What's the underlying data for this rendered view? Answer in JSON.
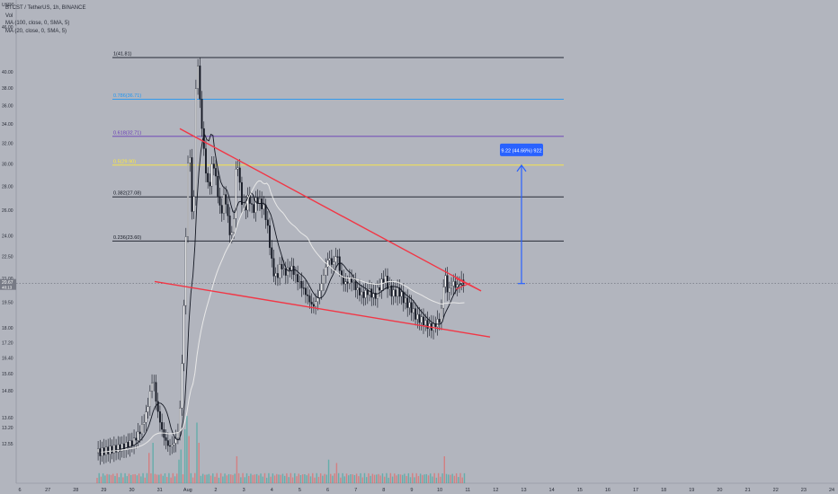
{
  "chart_data": {
    "type": "candlestick",
    "symbol_title": "BTCST / TetherUS, 1h, BINANCE",
    "indicators": [
      "Vol",
      "MA (100, close, 0, SMA, 5)",
      "MA (20, close, 0, SMA, 5)"
    ],
    "indicator_first": "MA (100, close, 0, SMA, 5)",
    "currency_label": "USDT",
    "y_scale": "log",
    "ylim": [
      11.6,
      46
    ],
    "y_ticks": [
      46.0,
      40.0,
      38.0,
      36.0,
      34.0,
      32.0,
      30.0,
      28.0,
      26.0,
      24.0,
      22.5,
      21.0,
      19.5,
      18.0,
      17.2,
      16.4,
      15.6,
      14.8,
      13.6,
      13.2,
      12.55
    ],
    "y_tick_labels": [
      "46.00",
      "40.00",
      "38.00",
      "36.00",
      "34.00",
      "32.00",
      "30.00",
      "28.00",
      "26.00",
      "24.00",
      "22.50",
      "21.00",
      "19.50",
      "18.00",
      "17.20",
      "16.40",
      "15.60",
      "14.80",
      "13.60",
      "13.20",
      "12.55"
    ],
    "current_price": "20.67",
    "current_price_sub": "48:13",
    "x_ticks": [
      "6",
      "27",
      "28",
      "29",
      "30",
      "31",
      "Aug",
      "2",
      "3",
      "4",
      "5",
      "6",
      "7",
      "8",
      "9",
      "10",
      "11",
      "12",
      "13",
      "14",
      "15",
      "16",
      "17",
      "18",
      "19",
      "20",
      "21",
      "22",
      "23",
      "24"
    ],
    "fib_levels": [
      {
        "ratio": 1,
        "price": 41.81,
        "label": "1(41.81)",
        "color": "#131722"
      },
      {
        "ratio": 0.786,
        "price": 36.71,
        "label": "0.786(36.71)",
        "color": "#2196f3"
      },
      {
        "ratio": 0.618,
        "price": 32.71,
        "label": "0.618(32.71)",
        "color": "#673ab7"
      },
      {
        "ratio": 0.5,
        "price": 29.9,
        "label": "0.5(29.90)",
        "color": "#ffeb3b"
      },
      {
        "ratio": 0.382,
        "price": 27.08,
        "label": "0.382(27.08)",
        "color": "#131722"
      },
      {
        "ratio": 0.236,
        "price": 23.6,
        "label": "0.236(23.60)",
        "color": "#131722"
      }
    ],
    "measure": {
      "label": "9.22 (44.66%) 922",
      "from_price": 20.67,
      "to_price": 29.9
    },
    "colors": {
      "up": "#ffffff",
      "down": "#131722",
      "trendline": "#f23645",
      "ma20": "#131722",
      "ma100": "#e8e8e8",
      "measure": "#2962ff"
    },
    "series_points": [
      {
        "t": 0,
        "p": 12.2
      },
      {
        "t": 6,
        "p": 12.3
      },
      {
        "t": 12,
        "p": 12.4
      },
      {
        "t": 18,
        "p": 12.6
      },
      {
        "t": 22,
        "p": 13.1
      },
      {
        "t": 25,
        "p": 13.9
      },
      {
        "t": 28,
        "p": 15.5
      },
      {
        "t": 30,
        "p": 14.0
      },
      {
        "t": 33,
        "p": 12.9
      },
      {
        "t": 36,
        "p": 12.4
      },
      {
        "t": 39,
        "p": 12.6
      },
      {
        "t": 41,
        "p": 13.2
      },
      {
        "t": 42,
        "p": 14.8
      },
      {
        "t": 43,
        "p": 17.5
      },
      {
        "t": 44,
        "p": 21.0
      },
      {
        "t": 45,
        "p": 27.0
      },
      {
        "t": 46,
        "p": 33.0
      },
      {
        "t": 47,
        "p": 28.5
      },
      {
        "t": 48,
        "p": 23.0
      },
      {
        "t": 49,
        "p": 31.5
      },
      {
        "t": 50,
        "p": 44.0
      },
      {
        "t": 51,
        "p": 38.0
      },
      {
        "t": 52,
        "p": 35.0
      },
      {
        "t": 54,
        "p": 30.0
      },
      {
        "t": 56,
        "p": 27.5
      },
      {
        "t": 58,
        "p": 30.5
      },
      {
        "t": 60,
        "p": 28.0
      },
      {
        "t": 62,
        "p": 25.5
      },
      {
        "t": 64,
        "p": 27.5
      },
      {
        "t": 66,
        "p": 24.5
      },
      {
        "t": 68,
        "p": 23.8
      },
      {
        "t": 70,
        "p": 31.0
      },
      {
        "t": 72,
        "p": 27.0
      },
      {
        "t": 74,
        "p": 26.0
      },
      {
        "t": 76,
        "p": 27.2
      },
      {
        "t": 78,
        "p": 25.8
      },
      {
        "t": 80,
        "p": 27.0
      },
      {
        "t": 82,
        "p": 26.5
      },
      {
        "t": 84,
        "p": 26.0
      },
      {
        "t": 86,
        "p": 24.0
      },
      {
        "t": 88,
        "p": 21.5
      },
      {
        "t": 90,
        "p": 21.0
      },
      {
        "t": 92,
        "p": 22.0
      },
      {
        "t": 94,
        "p": 21.3
      },
      {
        "t": 97,
        "p": 21.8
      },
      {
        "t": 100,
        "p": 21.0
      },
      {
        "t": 103,
        "p": 20.4
      },
      {
        "t": 106,
        "p": 19.7
      },
      {
        "t": 108,
        "p": 19.2
      },
      {
        "t": 110,
        "p": 19.6
      },
      {
        "t": 112,
        "p": 20.4
      },
      {
        "t": 114,
        "p": 21.5
      },
      {
        "t": 116,
        "p": 22.5
      },
      {
        "t": 118,
        "p": 21.8
      },
      {
        "t": 120,
        "p": 22.8
      },
      {
        "t": 122,
        "p": 21.2
      },
      {
        "t": 124,
        "p": 20.6
      },
      {
        "t": 127,
        "p": 21.0
      },
      {
        "t": 130,
        "p": 20.3
      },
      {
        "t": 133,
        "p": 19.9
      },
      {
        "t": 136,
        "p": 20.2
      },
      {
        "t": 139,
        "p": 19.8
      },
      {
        "t": 142,
        "p": 20.6
      },
      {
        "t": 144,
        "p": 21.1
      },
      {
        "t": 146,
        "p": 20.4
      },
      {
        "t": 148,
        "p": 20.0
      },
      {
        "t": 151,
        "p": 20.2
      },
      {
        "t": 154,
        "p": 19.6
      },
      {
        "t": 157,
        "p": 19.2
      },
      {
        "t": 160,
        "p": 18.6
      },
      {
        "t": 163,
        "p": 18.4
      },
      {
        "t": 166,
        "p": 18.1
      },
      {
        "t": 168,
        "p": 18.0
      },
      {
        "t": 170,
        "p": 18.3
      },
      {
        "t": 172,
        "p": 18.5
      },
      {
        "t": 173,
        "p": 19.5
      },
      {
        "t": 174,
        "p": 21.7
      },
      {
        "t": 175,
        "p": 20.4
      },
      {
        "t": 176,
        "p": 20.1
      },
      {
        "t": 178,
        "p": 20.8
      },
      {
        "t": 180,
        "p": 20.4
      },
      {
        "t": 182,
        "p": 20.9
      },
      {
        "t": 184,
        "p": 20.67
      }
    ],
    "volume_spikes": [
      {
        "t": 26,
        "v": 0.45
      },
      {
        "t": 28,
        "v": 0.6
      },
      {
        "t": 41,
        "v": 0.35
      },
      {
        "t": 42,
        "v": 0.5
      },
      {
        "t": 44,
        "v": 0.8
      },
      {
        "t": 45,
        "v": 1.0
      },
      {
        "t": 46,
        "v": 0.7
      },
      {
        "t": 50,
        "v": 0.9
      },
      {
        "t": 51,
        "v": 0.6
      },
      {
        "t": 70,
        "v": 0.4
      },
      {
        "t": 116,
        "v": 0.35
      },
      {
        "t": 120,
        "v": 0.3
      },
      {
        "t": 174,
        "v": 0.4
      }
    ]
  }
}
